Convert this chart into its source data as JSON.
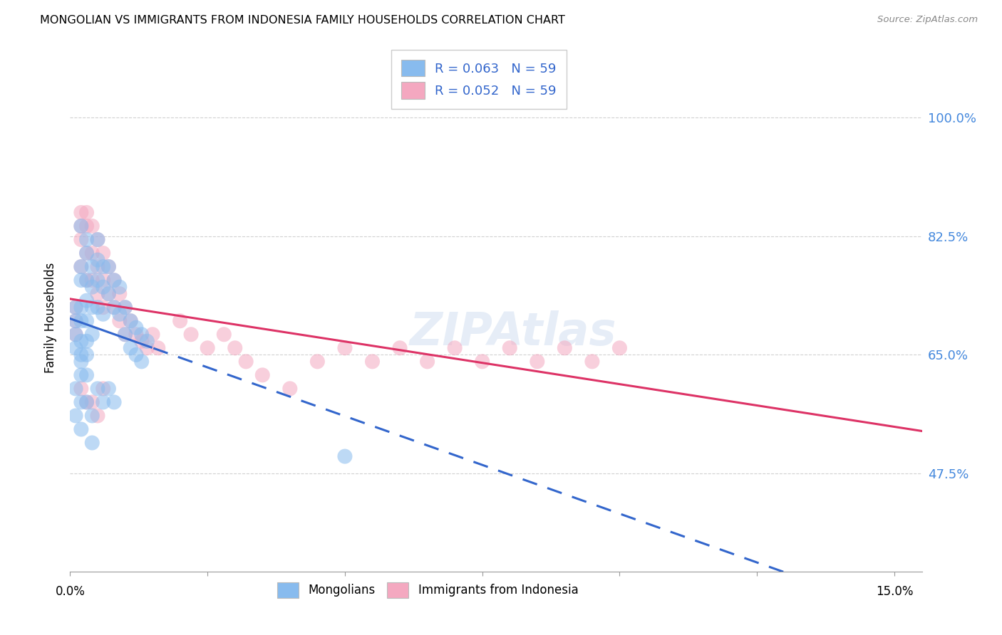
{
  "title": "MONGOLIAN VS IMMIGRANTS FROM INDONESIA FAMILY HOUSEHOLDS CORRELATION CHART",
  "source": "Source: ZipAtlas.com",
  "ylabel": "Family Households",
  "ytick_labels": [
    "47.5%",
    "65.0%",
    "82.5%",
    "100.0%"
  ],
  "ytick_values": [
    0.475,
    0.65,
    0.825,
    1.0
  ],
  "xlim": [
    0.0,
    0.155
  ],
  "ylim": [
    0.33,
    1.08
  ],
  "blue_color": "#88bbee",
  "pink_color": "#f4a8c0",
  "blue_line": "#3366cc",
  "pink_line": "#dd3366",
  "grid_color": "#cccccc",
  "legend_text_color": "#3366cc",
  "background": "#ffffff",
  "mongo_x": [
    0.001,
    0.001,
    0.001,
    0.001,
    0.002,
    0.002,
    0.002,
    0.002,
    0.002,
    0.002,
    0.002,
    0.002,
    0.003,
    0.003,
    0.003,
    0.003,
    0.003,
    0.003,
    0.003,
    0.004,
    0.004,
    0.004,
    0.004,
    0.005,
    0.005,
    0.005,
    0.005,
    0.006,
    0.006,
    0.006,
    0.007,
    0.007,
    0.008,
    0.008,
    0.009,
    0.009,
    0.01,
    0.01,
    0.011,
    0.011,
    0.012,
    0.012,
    0.013,
    0.013,
    0.014,
    0.001,
    0.001,
    0.002,
    0.002,
    0.003,
    0.003,
    0.004,
    0.004,
    0.005,
    0.006,
    0.007,
    0.008,
    0.05,
    0.002
  ],
  "mongo_y": [
    0.7,
    0.72,
    0.68,
    0.66,
    0.84,
    0.78,
    0.76,
    0.72,
    0.7,
    0.67,
    0.65,
    0.64,
    0.82,
    0.8,
    0.76,
    0.73,
    0.7,
    0.67,
    0.65,
    0.78,
    0.75,
    0.72,
    0.68,
    0.82,
    0.79,
    0.76,
    0.72,
    0.78,
    0.75,
    0.71,
    0.78,
    0.74,
    0.76,
    0.72,
    0.75,
    0.71,
    0.72,
    0.68,
    0.7,
    0.66,
    0.69,
    0.65,
    0.68,
    0.64,
    0.67,
    0.6,
    0.56,
    0.58,
    0.54,
    0.62,
    0.58,
    0.56,
    0.52,
    0.6,
    0.58,
    0.6,
    0.58,
    0.5,
    0.62
  ],
  "indo_x": [
    0.001,
    0.001,
    0.001,
    0.002,
    0.002,
    0.002,
    0.002,
    0.003,
    0.003,
    0.003,
    0.003,
    0.004,
    0.004,
    0.004,
    0.005,
    0.005,
    0.005,
    0.006,
    0.006,
    0.006,
    0.007,
    0.007,
    0.008,
    0.008,
    0.009,
    0.009,
    0.01,
    0.01,
    0.011,
    0.012,
    0.013,
    0.014,
    0.015,
    0.016,
    0.02,
    0.022,
    0.025,
    0.028,
    0.03,
    0.032,
    0.035,
    0.04,
    0.045,
    0.05,
    0.055,
    0.06,
    0.065,
    0.07,
    0.075,
    0.08,
    0.085,
    0.09,
    0.095,
    0.1,
    0.002,
    0.003,
    0.004,
    0.005,
    0.006
  ],
  "indo_y": [
    0.72,
    0.7,
    0.68,
    0.86,
    0.84,
    0.82,
    0.78,
    0.86,
    0.84,
    0.8,
    0.76,
    0.84,
    0.8,
    0.76,
    0.82,
    0.78,
    0.74,
    0.8,
    0.76,
    0.72,
    0.78,
    0.74,
    0.76,
    0.72,
    0.74,
    0.7,
    0.72,
    0.68,
    0.7,
    0.68,
    0.67,
    0.66,
    0.68,
    0.66,
    0.7,
    0.68,
    0.66,
    0.68,
    0.66,
    0.64,
    0.62,
    0.6,
    0.64,
    0.66,
    0.64,
    0.66,
    0.64,
    0.66,
    0.64,
    0.66,
    0.64,
    0.66,
    0.64,
    0.66,
    0.6,
    0.58,
    0.58,
    0.56,
    0.6
  ]
}
